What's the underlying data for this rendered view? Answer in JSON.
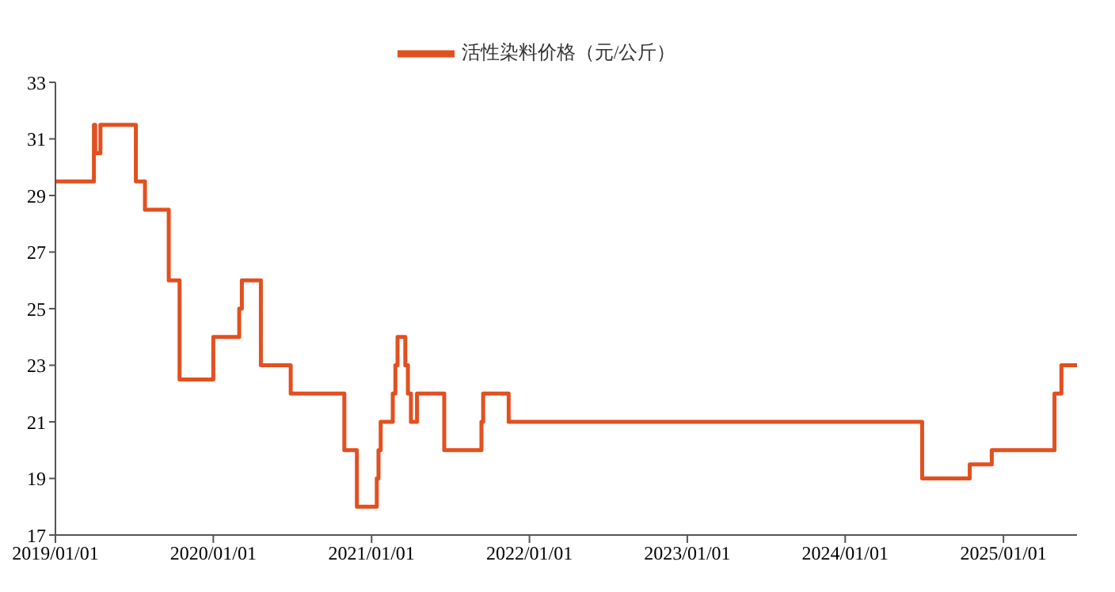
{
  "chart_data": {
    "type": "step",
    "x": [
      "2019-01-01",
      "2019-03-31",
      "2019-04-03",
      "2019-04-15",
      "2019-07-06",
      "2019-07-27",
      "2019-09-20",
      "2019-10-15",
      "2020-01-01",
      "2020-03-01",
      "2020-03-07",
      "2020-04-20",
      "2020-06-28",
      "2020-10-30",
      "2020-11-28",
      "2021-01-13",
      "2021-01-17",
      "2021-01-22",
      "2021-02-19",
      "2021-02-25",
      "2021-03-02",
      "2021-03-20",
      "2021-03-26",
      "2021-04-02",
      "2021-04-16",
      "2021-06-18",
      "2021-09-12",
      "2021-09-16",
      "2021-11-14",
      "2024-06-27",
      "2024-10-15",
      "2024-12-05",
      "2025-04-29",
      "2025-05-15",
      "2025-06-20"
    ],
    "series": [
      {
        "name": "活性染料价格（元/公斤）",
        "color": "#e2501f",
        "values": [
          29.5,
          31.5,
          30.5,
          31.5,
          29.5,
          28.5,
          26,
          22.5,
          24,
          25,
          26,
          23,
          22,
          20,
          18,
          19,
          20,
          21,
          22,
          23,
          24,
          23,
          22,
          21,
          22,
          20,
          21,
          22,
          21,
          19,
          19.5,
          20,
          22,
          23,
          23
        ]
      }
    ],
    "xlim": [
      "2019-01-01",
      "2025-06-20"
    ],
    "xticks": [
      {
        "value": "2019-01-01",
        "label": "2019/01/01"
      },
      {
        "value": "2020-01-01",
        "label": "2020/01/01"
      },
      {
        "value": "2021-01-01",
        "label": "2021/01/01"
      },
      {
        "value": "2022-01-01",
        "label": "2022/01/01"
      },
      {
        "value": "2023-01-01",
        "label": "2023/01/01"
      },
      {
        "value": "2024-01-01",
        "label": "2024/01/01"
      },
      {
        "value": "2025-01-01",
        "label": "2025/01/01"
      }
    ],
    "ylim": [
      17,
      33
    ],
    "yticks": [
      17,
      19,
      21,
      23,
      25,
      27,
      29,
      31,
      33
    ],
    "grid": false,
    "legend": "top",
    "marker": "none",
    "line_style": "solid"
  }
}
